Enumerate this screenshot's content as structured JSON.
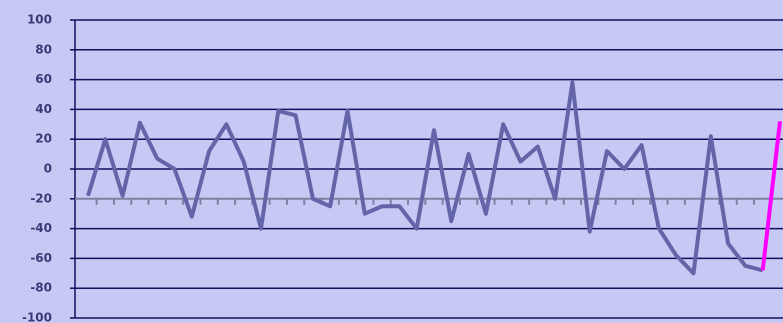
{
  "chart_data": {
    "type": "line",
    "categories": [
      null,
      null,
      null,
      null,
      null,
      null,
      null,
      null,
      null,
      null,
      null,
      null,
      null,
      null,
      null,
      null,
      null,
      null,
      null,
      null,
      null,
      null,
      null,
      null,
      null,
      null,
      null,
      null,
      null,
      null,
      null,
      null,
      null,
      null,
      null,
      null,
      null,
      null,
      null,
      null,
      null
    ],
    "series": [
      {
        "color": "#6464a8",
        "values": [
          -18,
          20,
          -18,
          31,
          7,
          0,
          -32,
          12,
          30,
          5,
          -40,
          39,
          36,
          -20,
          -25,
          39,
          -30,
          -25,
          -25,
          -40,
          26,
          -35,
          10,
          -30,
          30,
          5,
          15,
          -20,
          58,
          -42,
          12,
          0,
          16,
          -40,
          -58,
          -70,
          22,
          -50,
          -65,
          -68,
          null
        ]
      },
      {
        "color": "#ff00ff",
        "values": [
          null,
          null,
          null,
          null,
          null,
          null,
          null,
          null,
          null,
          null,
          null,
          null,
          null,
          null,
          null,
          null,
          null,
          null,
          null,
          null,
          null,
          null,
          null,
          null,
          null,
          null,
          null,
          null,
          null,
          null,
          null,
          null,
          null,
          null,
          null,
          null,
          null,
          null,
          null,
          -68,
          32
        ]
      }
    ],
    "ylim": [
      -100,
      100
    ],
    "yticks": [
      -100,
      -80,
      -60,
      -40,
      -20,
      0,
      20,
      40,
      60,
      80,
      100
    ],
    "x_axis_at": -20,
    "grid": true
  }
}
